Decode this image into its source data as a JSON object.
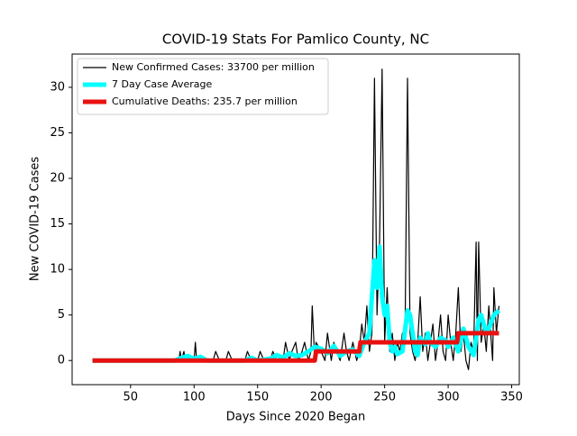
{
  "chart_data": {
    "type": "line",
    "title": "COVID-19 Stats For Pamlico County, NC",
    "xlabel": "Days Since 2020 Began",
    "ylabel": "New COVID-19 Cases",
    "xlim": [
      4,
      356
    ],
    "ylim": [
      -2.65,
      33.65
    ],
    "xticks": [
      50,
      100,
      150,
      200,
      250,
      300,
      350
    ],
    "yticks": [
      0,
      5,
      10,
      15,
      20,
      25,
      30
    ],
    "legend": "upper left",
    "series": [
      {
        "name": "New Confirmed Cases: 33700 per million",
        "color": "#000000",
        "x": [
          20,
          40,
          60,
          80,
          88,
          89,
          90,
          92,
          93,
          95,
          100,
          101,
          102,
          105,
          115,
          117,
          120,
          125,
          127,
          130,
          140,
          142,
          145,
          150,
          152,
          155,
          160,
          162,
          165,
          170,
          172,
          175,
          177,
          180,
          182,
          185,
          187,
          190,
          192,
          193,
          195,
          196,
          200,
          203,
          205,
          208,
          210,
          212,
          215,
          218,
          220,
          222,
          225,
          228,
          230,
          232,
          234,
          236,
          238,
          240,
          242,
          244,
          246,
          248,
          250,
          252,
          254,
          256,
          258,
          260,
          262,
          264,
          266,
          268,
          270,
          272,
          274,
          276,
          278,
          280,
          282,
          284,
          286,
          288,
          290,
          292,
          294,
          296,
          298,
          300,
          302,
          304,
          306,
          308,
          310,
          312,
          314,
          316,
          318,
          320,
          322,
          323,
          324,
          326,
          328,
          330,
          332,
          334,
          335,
          336,
          338,
          340
        ],
        "values": [
          0,
          0,
          0,
          0,
          0,
          1,
          0,
          1,
          0,
          0,
          0,
          2,
          0,
          0,
          0,
          1,
          0,
          0,
          1,
          0,
          0,
          1,
          0,
          0,
          1,
          0,
          0,
          1,
          0,
          0,
          2,
          0,
          1,
          2,
          0,
          1,
          2,
          0,
          1,
          6,
          0,
          2,
          1,
          0,
          3,
          0,
          2,
          1,
          0,
          3,
          1,
          0,
          2,
          0,
          1,
          4,
          2,
          6,
          1,
          3,
          31,
          5,
          13,
          32,
          2,
          8,
          1,
          3,
          0,
          2,
          1,
          3,
          2,
          31,
          3,
          1,
          0,
          2,
          7,
          1,
          3,
          0,
          2,
          4,
          0,
          2,
          5,
          1,
          0,
          5,
          2,
          0,
          3,
          8,
          1,
          3,
          0,
          -1,
          2,
          1,
          13,
          0,
          13,
          2,
          4,
          1,
          6,
          2,
          0,
          8,
          3,
          6
        ]
      },
      {
        "name": "7 Day Case Average",
        "color": "#00ffff",
        "x": [
          20,
          85,
          90,
          95,
          100,
          105,
          110,
          140,
          145,
          150,
          160,
          165,
          170,
          175,
          180,
          185,
          190,
          195,
          200,
          205,
          210,
          215,
          220,
          225,
          230,
          234,
          238,
          242,
          244,
          246,
          248,
          250,
          252,
          254,
          256,
          258,
          260,
          264,
          268,
          270,
          272,
          274,
          276,
          278,
          280,
          282,
          284,
          286,
          290,
          294,
          298,
          300,
          304,
          308,
          312,
          316,
          320,
          322,
          324,
          326,
          328,
          330,
          332,
          336,
          340
        ],
        "values": [
          0,
          0,
          0.3,
          0.5,
          0.2,
          0.4,
          0,
          0,
          0.3,
          0,
          0.2,
          0.6,
          0.3,
          0.8,
          0.5,
          0.6,
          1,
          1.5,
          1.3,
          0.8,
          1.6,
          0.5,
          1,
          1.2,
          0.5,
          2,
          3,
          11,
          8,
          12.5,
          7,
          5,
          6,
          2,
          1,
          1.5,
          0.7,
          1,
          5.5,
          5,
          3,
          1,
          0.6,
          2.5,
          2,
          1.8,
          3,
          2,
          1.5,
          2.5,
          2.2,
          1.5,
          2.5,
          1,
          3.5,
          1.5,
          0.6,
          2.5,
          4.5,
          5,
          4,
          3,
          3.5,
          5,
          5.5
        ]
      },
      {
        "name": "Cumulative Deaths: 235.7 per million",
        "color": "#e8110f",
        "x": [
          20,
          195,
          196,
          230,
          231,
          307,
          308,
          340
        ],
        "values": [
          0,
          0,
          1,
          1,
          2,
          2,
          3,
          3
        ]
      }
    ]
  }
}
